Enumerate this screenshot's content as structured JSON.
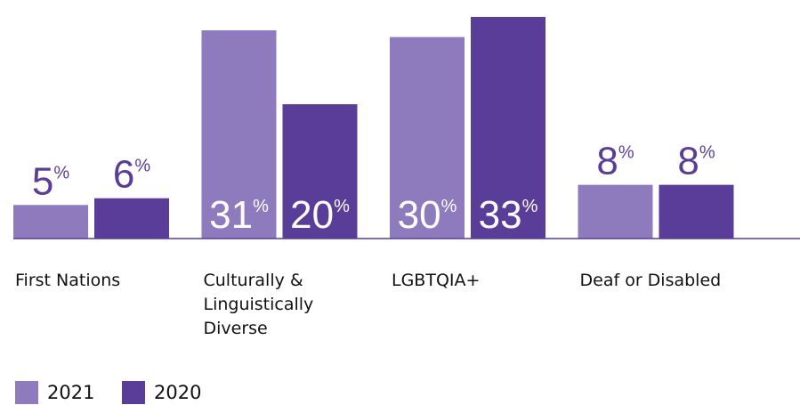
{
  "chart_data": {
    "type": "bar",
    "categories": [
      "First Nations",
      "Culturally & Linguistically Diverse",
      "LGBTQIA+",
      "Deaf or Disabled"
    ],
    "series": [
      {
        "name": "2021",
        "color": "#8e7bbd",
        "values": [
          5,
          31,
          30,
          8
        ],
        "value_labels": [
          "5%",
          "31%",
          "30%",
          "8%"
        ]
      },
      {
        "name": "2020",
        "color": "#5a3d99",
        "values": [
          6,
          20,
          33,
          8
        ],
        "value_labels": [
          "6%",
          "20%",
          "33%",
          "8%"
        ]
      }
    ]
  }
}
